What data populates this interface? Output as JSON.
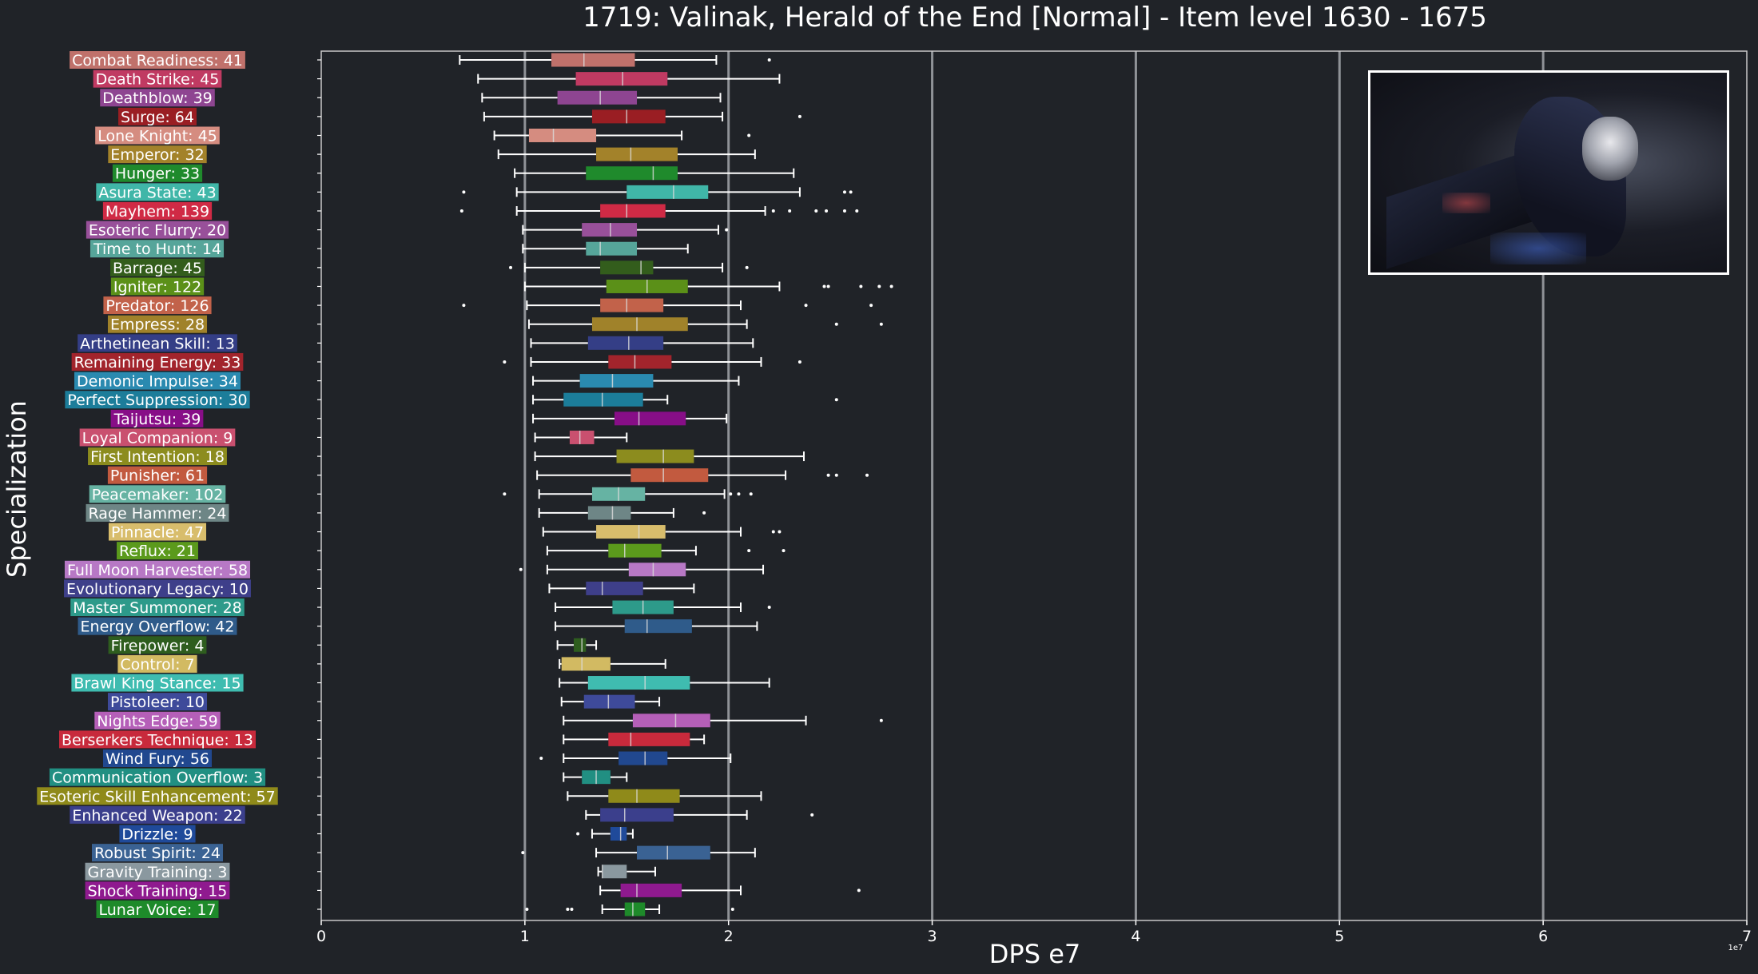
{
  "chart_data": {
    "type": "boxplot",
    "title": "1719: Valinak, Herald of the End [Normal] - Item level 1630 - 1675",
    "xlabel": "DPS e7",
    "ylabel": "Specialization",
    "xlim": [
      0,
      7
    ],
    "xticks": [
      0,
      1,
      2,
      3,
      4,
      5,
      6,
      7
    ],
    "x_offset_label": "1e7",
    "grid": "vertical",
    "series": [
      {
        "label": "Combat Readiness: 41",
        "color": "#C0716B",
        "box": [
          0.68,
          1.13,
          1.29,
          1.54,
          1.94
        ],
        "outliers": [
          2.2
        ]
      },
      {
        "label": "Death Strike: 45",
        "color": "#C03A62",
        "box": [
          0.77,
          1.25,
          1.48,
          1.7,
          2.25
        ],
        "outliers": []
      },
      {
        "label": "Deathblow: 39",
        "color": "#8E4591",
        "box": [
          0.79,
          1.16,
          1.37,
          1.55,
          1.96
        ],
        "outliers": []
      },
      {
        "label": "Surge: 64",
        "color": "#9A1E23",
        "box": [
          0.8,
          1.33,
          1.5,
          1.69,
          1.97
        ],
        "outliers": [
          2.35
        ]
      },
      {
        "label": "Lone Knight: 45",
        "color": "#D58C80",
        "box": [
          0.85,
          1.02,
          1.14,
          1.35,
          1.77
        ],
        "outliers": [
          2.1
        ]
      },
      {
        "label": "Emperor: 32",
        "color": "#A3822A",
        "box": [
          0.87,
          1.35,
          1.52,
          1.75,
          2.13
        ],
        "outliers": []
      },
      {
        "label": "Hunger: 33",
        "color": "#1F8A2C",
        "box": [
          0.95,
          1.3,
          1.63,
          1.75,
          2.32
        ],
        "outliers": []
      },
      {
        "label": "Asura State: 43",
        "color": "#40B6A8",
        "box": [
          0.96,
          1.5,
          1.73,
          1.9,
          2.35
        ],
        "outliers": [
          0.7,
          2.57,
          2.6
        ]
      },
      {
        "label": "Mayhem: 139",
        "color": "#D02A45",
        "box": [
          0.96,
          1.37,
          1.5,
          1.69,
          2.18
        ],
        "outliers": [
          0.69,
          2.22,
          2.3,
          2.43,
          2.48,
          2.57,
          2.63
        ]
      },
      {
        "label": "Esoteric Flurry: 20",
        "color": "#98509A",
        "box": [
          0.99,
          1.28,
          1.42,
          1.55,
          1.95
        ],
        "outliers": [
          1.99
        ]
      },
      {
        "label": "Time to Hunt: 14",
        "color": "#56A59A",
        "box": [
          0.99,
          1.3,
          1.37,
          1.55,
          1.8
        ],
        "outliers": []
      },
      {
        "label": "Barrage: 45",
        "color": "#335D1C",
        "box": [
          1.0,
          1.37,
          1.57,
          1.63,
          1.97
        ],
        "outliers": [
          0.93,
          2.09
        ]
      },
      {
        "label": "Igniter: 122",
        "color": "#5B9018",
        "box": [
          1.0,
          1.4,
          1.6,
          1.8,
          2.25
        ],
        "outliers": [
          2.47,
          2.49,
          2.65,
          2.74,
          2.8
        ]
      },
      {
        "label": "Predator: 126",
        "color": "#C2624A",
        "box": [
          1.01,
          1.37,
          1.5,
          1.68,
          2.06
        ],
        "outliers": [
          0.7,
          2.38,
          2.7
        ]
      },
      {
        "label": "Empress: 28",
        "color": "#A0822A",
        "box": [
          1.02,
          1.33,
          1.55,
          1.8,
          2.09
        ],
        "outliers": [
          2.53,
          2.75
        ]
      },
      {
        "label": "Arthetinean Skill: 13",
        "color": "#343E86",
        "box": [
          1.03,
          1.31,
          1.51,
          1.68,
          2.12
        ],
        "outliers": []
      },
      {
        "label": "Remaining Energy: 33",
        "color": "#A2242C",
        "box": [
          1.03,
          1.41,
          1.54,
          1.72,
          2.16
        ],
        "outliers": [
          0.9,
          2.35
        ]
      },
      {
        "label": "Demonic Impulse: 34",
        "color": "#2A8AB0",
        "box": [
          1.04,
          1.27,
          1.43,
          1.63,
          2.05
        ],
        "outliers": []
      },
      {
        "label": "Perfect Suppression: 30",
        "color": "#1C7D9A",
        "box": [
          1.04,
          1.19,
          1.38,
          1.58,
          1.7
        ],
        "outliers": [
          2.53
        ]
      },
      {
        "label": "Taijutsu: 39",
        "color": "#870E87",
        "box": [
          1.04,
          1.44,
          1.56,
          1.79,
          1.99
        ],
        "outliers": []
      },
      {
        "label": "Loyal Companion: 9",
        "color": "#C9506F",
        "box": [
          1.05,
          1.22,
          1.27,
          1.34,
          1.5
        ],
        "outliers": []
      },
      {
        "label": "First Intention: 18",
        "color": "#8C8C1E",
        "box": [
          1.05,
          1.45,
          1.68,
          1.83,
          2.37
        ],
        "outliers": []
      },
      {
        "label": "Punisher: 61",
        "color": "#C25A3F",
        "box": [
          1.06,
          1.52,
          1.68,
          1.9,
          2.28
        ],
        "outliers": [
          2.49,
          2.53,
          2.68
        ]
      },
      {
        "label": "Peacemaker: 102",
        "color": "#66B3A3",
        "box": [
          1.07,
          1.33,
          1.46,
          1.59,
          1.98
        ],
        "outliers": [
          0.9,
          2.01,
          2.05,
          2.11
        ]
      },
      {
        "label": "Rage Hammer: 24",
        "color": "#6E8686",
        "box": [
          1.07,
          1.31,
          1.43,
          1.52,
          1.73
        ],
        "outliers": [
          1.88
        ]
      },
      {
        "label": "Pinnacle: 47",
        "color": "#D8BD6C",
        "box": [
          1.09,
          1.35,
          1.56,
          1.69,
          2.06
        ],
        "outliers": [
          2.22,
          2.25
        ]
      },
      {
        "label": "Reflux: 21",
        "color": "#5B9A1C",
        "box": [
          1.11,
          1.41,
          1.49,
          1.67,
          1.84
        ],
        "outliers": [
          2.1,
          2.27
        ]
      },
      {
        "label": "Full Moon Harvester: 58",
        "color": "#B778C5",
        "box": [
          1.11,
          1.51,
          1.63,
          1.79,
          2.17
        ],
        "outliers": [
          0.98
        ]
      },
      {
        "label": "Evolutionary Legacy: 10",
        "color": "#3E3F8A",
        "box": [
          1.12,
          1.3,
          1.38,
          1.58,
          1.83
        ],
        "outliers": []
      },
      {
        "label": "Master Summoner: 28",
        "color": "#2D9A8A",
        "box": [
          1.15,
          1.43,
          1.58,
          1.73,
          2.06
        ],
        "outliers": [
          2.2
        ]
      },
      {
        "label": "Energy Overflow: 42",
        "color": "#2F5B8A",
        "box": [
          1.15,
          1.49,
          1.6,
          1.82,
          2.14
        ],
        "outliers": []
      },
      {
        "label": "Firepower: 4",
        "color": "#2E5D1E",
        "box": [
          1.16,
          1.24,
          1.28,
          1.3,
          1.35
        ],
        "outliers": []
      },
      {
        "label": "Control: 7",
        "color": "#D2BA62",
        "box": [
          1.17,
          1.18,
          1.28,
          1.42,
          1.69
        ],
        "outliers": []
      },
      {
        "label": "Brawl King Stance: 15",
        "color": "#3FBCB0",
        "box": [
          1.17,
          1.31,
          1.59,
          1.81,
          2.2
        ],
        "outliers": []
      },
      {
        "label": "Pistoleer: 10",
        "color": "#3E4A9A",
        "box": [
          1.18,
          1.29,
          1.41,
          1.54,
          1.66
        ],
        "outliers": []
      },
      {
        "label": "Nights Edge: 59",
        "color": "#B55FB8",
        "box": [
          1.19,
          1.53,
          1.74,
          1.91,
          2.38
        ],
        "outliers": [
          2.75
        ]
      },
      {
        "label": "Berserkers Technique: 13",
        "color": "#C82A3C",
        "box": [
          1.19,
          1.41,
          1.52,
          1.81,
          1.88
        ],
        "outliers": []
      },
      {
        "label": "Wind Fury: 56",
        "color": "#21488F",
        "box": [
          1.19,
          1.46,
          1.59,
          1.7,
          2.01
        ],
        "outliers": [
          1.08
        ]
      },
      {
        "label": "Communication Overflow: 3",
        "color": "#218F82",
        "box": [
          1.19,
          1.28,
          1.35,
          1.42,
          1.5
        ],
        "outliers": []
      },
      {
        "label": "Esoteric Skill Enhancement: 57",
        "color": "#8F8A1A",
        "box": [
          1.21,
          1.41,
          1.55,
          1.76,
          2.16
        ],
        "outliers": []
      },
      {
        "label": "Enhanced Weapon: 22",
        "color": "#3B3F8C",
        "box": [
          1.3,
          1.37,
          1.49,
          1.73,
          2.09
        ],
        "outliers": [
          2.41
        ]
      },
      {
        "label": "Drizzle: 9",
        "color": "#1F4A9A",
        "box": [
          1.33,
          1.42,
          1.47,
          1.5,
          1.53
        ],
        "outliers": [
          1.26
        ]
      },
      {
        "label": "Robust Spirit: 24",
        "color": "#3A6293",
        "box": [
          1.35,
          1.55,
          1.7,
          1.91,
          2.13
        ],
        "outliers": [
          0.99
        ]
      },
      {
        "label": "Gravity Training: 3",
        "color": "#8A989F",
        "box": [
          1.36,
          1.38,
          1.38,
          1.5,
          1.64
        ],
        "outliers": []
      },
      {
        "label": "Shock Training: 15",
        "color": "#8F1A8F",
        "box": [
          1.37,
          1.47,
          1.55,
          1.77,
          2.06
        ],
        "outliers": [
          2.64
        ]
      },
      {
        "label": "Lunar Voice: 17",
        "color": "#1E8A2A",
        "box": [
          1.38,
          1.49,
          1.53,
          1.59,
          1.66
        ],
        "outliers": [
          1.01,
          1.21,
          1.23,
          2.02
        ]
      }
    ]
  }
}
